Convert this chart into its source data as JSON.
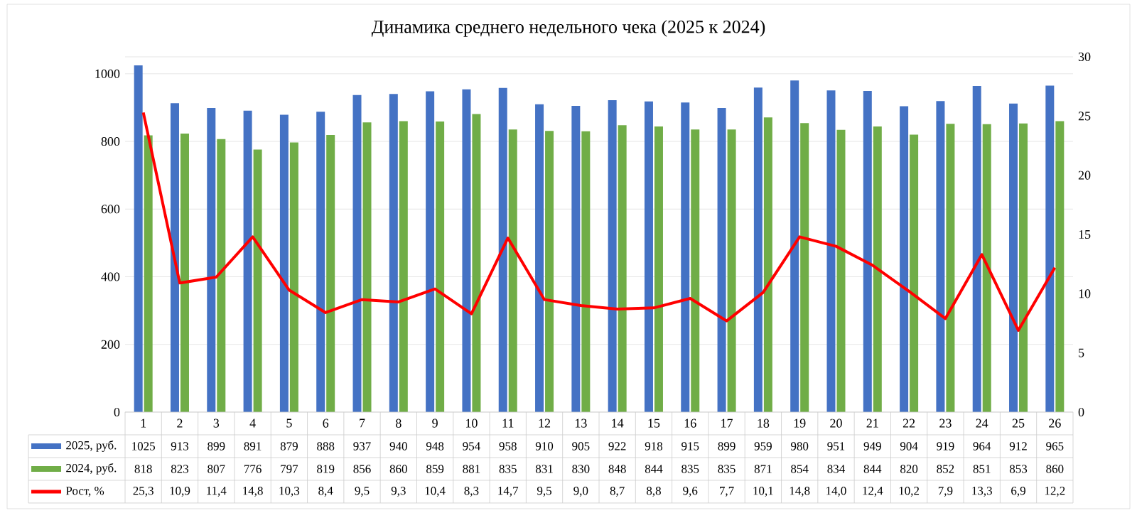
{
  "chart_data": {
    "type": "bar",
    "title": "Динамика среднего недельного чека (2025 к 2024)",
    "categories": [
      "1",
      "2",
      "3",
      "4",
      "5",
      "6",
      "7",
      "8",
      "9",
      "10",
      "11",
      "12",
      "13",
      "14",
      "15",
      "16",
      "17",
      "18",
      "19",
      "20",
      "21",
      "22",
      "23",
      "24",
      "25",
      "26"
    ],
    "series": [
      {
        "name": "2025, руб.",
        "color": "#4472c4",
        "values": [
          1025,
          913,
          899,
          891,
          879,
          888,
          937,
          940,
          948,
          954,
          958,
          910,
          905,
          922,
          918,
          915,
          899,
          959,
          980,
          951,
          949,
          904,
          919,
          964,
          912,
          965
        ],
        "value_labels": [
          "1025",
          "913",
          "899",
          "891",
          "879",
          "888",
          "937",
          "940",
          "948",
          "954",
          "958",
          "910",
          "905",
          "922",
          "918",
          "915",
          "899",
          "959",
          "980",
          "951",
          "949",
          "904",
          "919",
          "964",
          "912",
          "965"
        ]
      },
      {
        "name": "2024, руб.",
        "color": "#70ad47",
        "values": [
          818,
          823,
          807,
          776,
          797,
          819,
          856,
          860,
          859,
          881,
          835,
          831,
          830,
          848,
          844,
          835,
          835,
          871,
          854,
          834,
          844,
          820,
          852,
          851,
          853,
          860
        ],
        "value_labels": [
          "818",
          "823",
          "807",
          "776",
          "797",
          "819",
          "856",
          "860",
          "859",
          "881",
          "835",
          "831",
          "830",
          "848",
          "844",
          "835",
          "835",
          "871",
          "854",
          "834",
          "844",
          "820",
          "852",
          "851",
          "853",
          "860"
        ]
      },
      {
        "name": "Рост, %",
        "type": "line",
        "axis": "y2",
        "color": "#ff0000",
        "values": [
          25.3,
          10.9,
          11.4,
          14.8,
          10.3,
          8.4,
          9.5,
          9.3,
          10.4,
          8.3,
          14.7,
          9.5,
          9.0,
          8.7,
          8.8,
          9.6,
          7.7,
          10.1,
          14.8,
          14.0,
          12.4,
          10.2,
          7.9,
          13.3,
          6.9,
          12.2
        ],
        "value_labels": [
          "25,3",
          "10,9",
          "11,4",
          "14,8",
          "10,3",
          "8,4",
          "9,5",
          "9,3",
          "10,4",
          "8,3",
          "14,7",
          "9,5",
          "9,0",
          "8,7",
          "8,8",
          "9,6",
          "7,7",
          "10,1",
          "14,8",
          "14,0",
          "12,4",
          "10,2",
          "7,9",
          "13,3",
          "6,9",
          "12,2"
        ]
      }
    ],
    "ylim": [
      0,
      1050
    ],
    "yticks": [
      0,
      200,
      400,
      600,
      800,
      1000
    ],
    "y2lim": [
      0,
      30
    ],
    "y2ticks": [
      0,
      5,
      10,
      15,
      20,
      25,
      30
    ],
    "grid": "y",
    "legend": "bottom"
  }
}
